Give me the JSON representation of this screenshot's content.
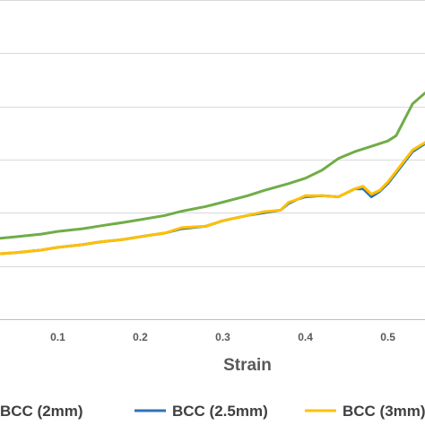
{
  "chart_data": {
    "type": "line",
    "title": "",
    "xlabel": "Strain",
    "ylabel": "",
    "xlim": [
      0.03,
      0.545
    ],
    "ylim": [
      0,
      6
    ],
    "y_gridlines": [
      1,
      2,
      3,
      4,
      5,
      6
    ],
    "x_ticks": [
      "0.1",
      "0.2",
      "0.3",
      "0.4",
      "0.5"
    ],
    "x_tick_values": [
      0.1,
      0.2,
      0.3,
      0.4,
      0.5
    ],
    "grid": true,
    "legend_position": "bottom",
    "series": [
      {
        "name": "BCC (2mm)",
        "color": "#70AD47",
        "x": [
          0.03,
          0.05,
          0.08,
          0.1,
          0.13,
          0.15,
          0.18,
          0.2,
          0.23,
          0.25,
          0.28,
          0.3,
          0.33,
          0.35,
          0.38,
          0.4,
          0.42,
          0.44,
          0.46,
          0.48,
          0.5,
          0.51,
          0.52,
          0.53,
          0.545
        ],
        "y": [
          1.52,
          1.55,
          1.6,
          1.65,
          1.7,
          1.75,
          1.82,
          1.87,
          1.95,
          2.03,
          2.12,
          2.2,
          2.32,
          2.42,
          2.55,
          2.65,
          2.8,
          3.02,
          3.15,
          3.25,
          3.35,
          3.45,
          3.75,
          4.05,
          4.25
        ]
      },
      {
        "name": "BCC (2.5mm)",
        "color": "#2E75B6",
        "x": [
          0.03,
          0.05,
          0.08,
          0.1,
          0.13,
          0.15,
          0.18,
          0.2,
          0.23,
          0.25,
          0.28,
          0.3,
          0.33,
          0.35,
          0.37,
          0.38,
          0.39,
          0.4,
          0.42,
          0.44,
          0.46,
          0.47,
          0.48,
          0.49,
          0.5,
          0.51,
          0.52,
          0.53,
          0.545
        ],
        "y": [
          1.23,
          1.25,
          1.3,
          1.35,
          1.4,
          1.45,
          1.5,
          1.55,
          1.62,
          1.7,
          1.75,
          1.85,
          1.95,
          2.0,
          2.05,
          2.18,
          2.25,
          2.3,
          2.32,
          2.3,
          2.45,
          2.45,
          2.3,
          2.4,
          2.55,
          2.75,
          2.95,
          3.15,
          3.3
        ]
      },
      {
        "name": "BCC (3mm)",
        "color": "#FFC000",
        "x": [
          0.03,
          0.05,
          0.08,
          0.1,
          0.13,
          0.15,
          0.18,
          0.2,
          0.23,
          0.25,
          0.28,
          0.3,
          0.33,
          0.35,
          0.37,
          0.38,
          0.39,
          0.4,
          0.42,
          0.44,
          0.46,
          0.47,
          0.48,
          0.49,
          0.5,
          0.51,
          0.52,
          0.53,
          0.545
        ],
        "y": [
          1.23,
          1.25,
          1.3,
          1.35,
          1.4,
          1.45,
          1.5,
          1.55,
          1.62,
          1.72,
          1.75,
          1.85,
          1.95,
          2.02,
          2.05,
          2.2,
          2.25,
          2.32,
          2.32,
          2.3,
          2.45,
          2.5,
          2.35,
          2.42,
          2.58,
          2.78,
          2.98,
          3.18,
          3.32
        ]
      }
    ]
  }
}
